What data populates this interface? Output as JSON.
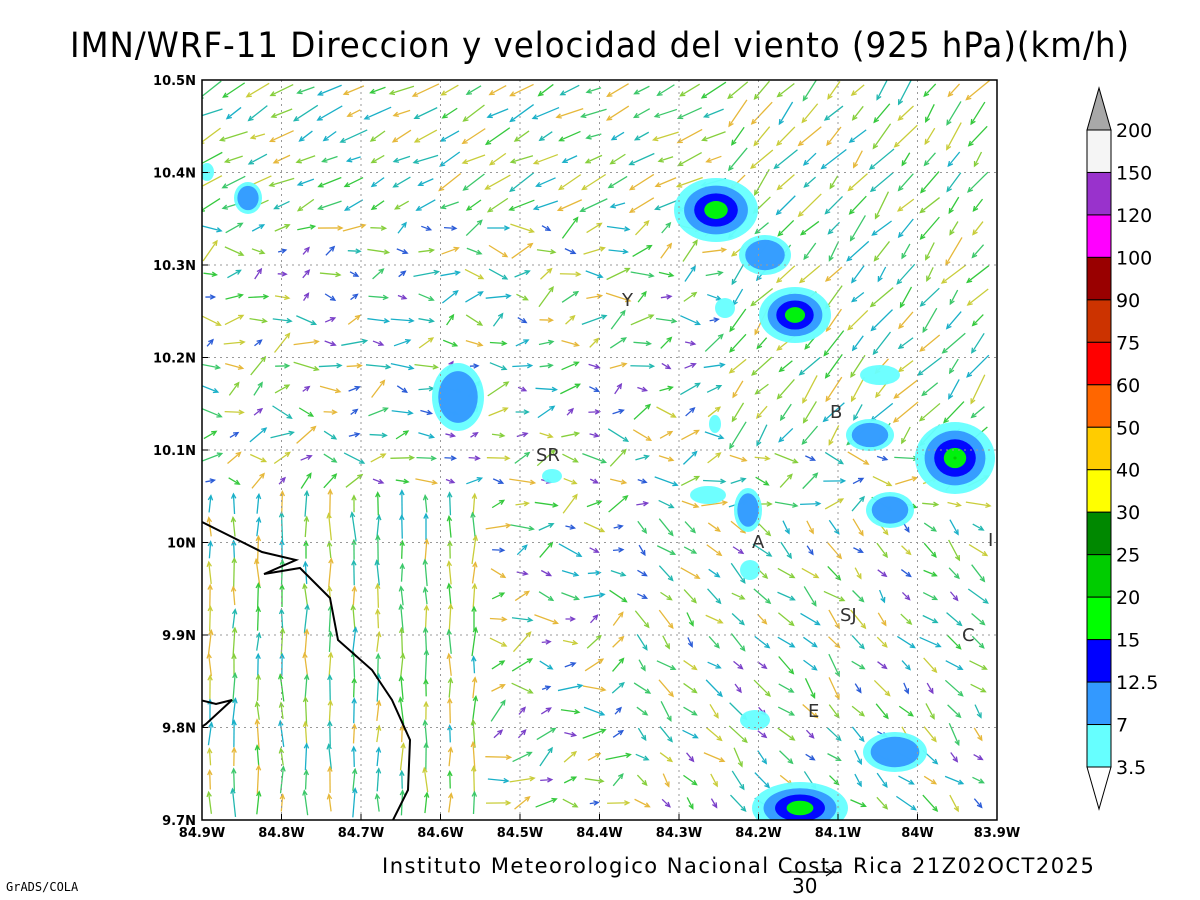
{
  "title": "IMN/WRF-11 Direccion y velocidad del viento (925 hPa)(km/h)",
  "footer": "Instituto Meteorologico Nacional Costa Rica 21Z02OCT2025",
  "credit": "GrADS/COLA",
  "reference_vector": {
    "label": "30"
  },
  "axes": {
    "x_ticks": [
      "84.9W",
      "84.8W",
      "84.7W",
      "84.6W",
      "84.5W",
      "84.4W",
      "84.3W",
      "84.2W",
      "84.1W",
      "84W",
      "83.9W"
    ],
    "y_ticks": [
      "10.5N",
      "10.4N",
      "10.3N",
      "10.2N",
      "10.1N",
      "10N",
      "9.9N",
      "9.8N",
      "9.7N"
    ]
  },
  "colorbar": {
    "labels": [
      "200",
      "150",
      "120",
      "100",
      "90",
      "75",
      "60",
      "50",
      "40",
      "30",
      "25",
      "20",
      "15",
      "12.5",
      "7",
      "3.5"
    ],
    "colors": [
      "#a8a8a8",
      "#f5f5f5",
      "#9932cc",
      "#ff00ff",
      "#990000",
      "#cc3300",
      "#ff0000",
      "#ff6600",
      "#ffcc00",
      "#ffff00",
      "#008800",
      "#00cc00",
      "#00ff00",
      "#0000ff",
      "#3399ff",
      "#66ffff"
    ]
  },
  "places": [
    {
      "label": "Y"
    },
    {
      "label": "SR"
    },
    {
      "label": "B"
    },
    {
      "label": "A"
    },
    {
      "label": "SJ"
    },
    {
      "label": "C"
    },
    {
      "label": "E"
    },
    {
      "label": "I"
    }
  ]
}
